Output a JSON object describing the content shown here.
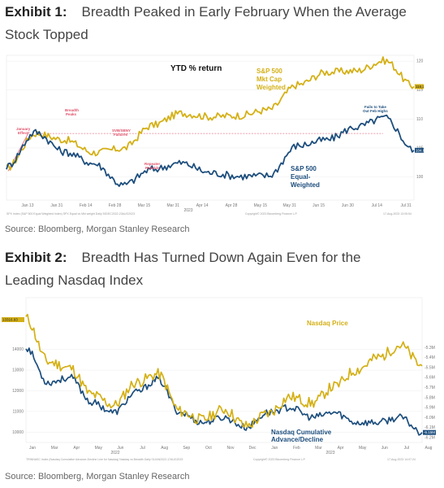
{
  "exhibit1": {
    "title_line1_num": "Exhibit 1:",
    "title_line1_text": "Breadth Peaked in Early February When the Average",
    "title_line2": "Stock Topped",
    "source": "Source: Bloomberg, Morgan Stanley Research",
    "footer_left": "SPX Index (S&P 500 Equal Weighted Index) SPX Equal vs Mkt weight  Daily 30DEC2022-23AUG2023",
    "footer_center": "Copyright© 2023 Bloomberg Finance L.P.",
    "footer_right": "17-Aug-2023 13:05:54"
  },
  "exhibit2": {
    "title_line1_num": "Exhibit 2:",
    "title_line1_text": "Breadth Has Turned Down Again Even for the",
    "title_line2": "Leading Nasdaq Index",
    "source": "Source: Bloomberg, Morgan Stanley Research",
    "footer_left": "TRINNASC Index (Nasdaq Cumulative Advance-Decline Line for Nasdaq) Nasdaq vs Breadth  Daily 01JAN2022-17AUG2023",
    "footer_center": "Copyright© 2023 Bloomberg Finance L.P.",
    "footer_right": "17-Aug-2023 14:07:24"
  },
  "chart_data": [
    {
      "type": "line",
      "title": "YTD % return",
      "x": [
        "Jan 13",
        "Jan 31",
        "Feb 14",
        "Feb 28",
        "Mar 15",
        "Mar 31",
        "Apr 14",
        "Apr 28",
        "May 15",
        "May 31",
        "Jun 15",
        "Jun 30",
        "Jul 14",
        "Jul 31",
        "Aug 15"
      ],
      "x_year_label": "2023",
      "ylim": [
        96,
        121
      ],
      "y_ticks": [
        "100",
        "105",
        "110",
        "115",
        "120"
      ],
      "series": [
        {
          "name": "S&P 500 Mkt Cap Weighted",
          "color": "#d4b016",
          "values": [
            101.5,
            107.5,
            106.4,
            104.2,
            104.9,
            108.9,
            111.0,
            110.4,
            110.6,
            111.6,
            115.9,
            118.1,
            118.3,
            120.1,
            115.6
          ],
          "last_value_label": "116.28"
        },
        {
          "name": "S&P 500 Equal-Weighted",
          "color": "#1d4e7d",
          "values": [
            101.8,
            107.7,
            104.3,
            102.3,
            98.6,
            101.3,
            102.4,
            100.7,
            100.1,
            100.2,
            105.4,
            106.4,
            108.6,
            110.2,
            104.6
          ],
          "last_value_label": "104.85"
        }
      ],
      "annotations": [
        "January Effect",
        "Breadth Peaks",
        "SVB/SBNY Failures",
        "Repeater Rebalds",
        "Fails to Take Out Feb Highs"
      ]
    },
    {
      "type": "line",
      "x": [
        "Jan",
        "Mar",
        "Apr",
        "May",
        "Jun",
        "Jul",
        "Aug",
        "Sep",
        "Oct",
        "Nov",
        "Dec",
        "Jan",
        "Feb",
        "Mar",
        "Apr",
        "May",
        "Jun",
        "Jul",
        "Aug"
      ],
      "x_year_labels": [
        "2022",
        "2023"
      ],
      "series": [
        {
          "name": "Nasdaq Price",
          "color": "#d4b016",
          "axis": "left",
          "ylim": [
            9500,
            16500
          ],
          "y_ticks": [
            "10000",
            "11000",
            "12000",
            "13000",
            "14000"
          ],
          "values": [
            15500,
            13400,
            13100,
            11800,
            11300,
            12400,
            12800,
            11000,
            10600,
            11100,
            10300,
            10900,
            11700,
            11400,
            12200,
            13000,
            13600,
            14200,
            13200
          ],
          "last_value_label": "13316.93"
        },
        {
          "name": "Nasdaq Cumulative Advance/Decline",
          "color": "#1d4e7d",
          "axis": "right",
          "ylim": [
            -6.25,
            -4.8
          ],
          "y_ticks": [
            "-6.2M",
            "-6.1M",
            "-6.0M",
            "-5.9M",
            "-5.8M",
            "-5.7M",
            "-5.6M",
            "-5.5M",
            "-5.4M",
            "-5.3M"
          ],
          "values": [
            -5.3,
            -5.65,
            -5.6,
            -5.85,
            -5.95,
            -5.75,
            -5.62,
            -5.95,
            -6.05,
            -6.0,
            -6.1,
            -5.95,
            -5.9,
            -6.0,
            -5.95,
            -6.05,
            -6.05,
            -6.0,
            -6.15
          ],
          "last_value_label": "-6.15M"
        }
      ]
    }
  ]
}
